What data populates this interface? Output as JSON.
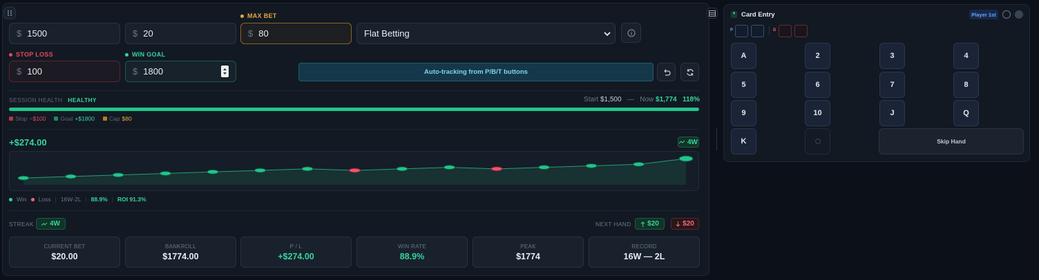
{
  "inputs": {
    "bankroll": {
      "prefix": "$",
      "value": "1500"
    },
    "base_bet": {
      "prefix": "$",
      "value": "20"
    },
    "max_bet": {
      "label": "MAX BET",
      "prefix": "$",
      "value": "80"
    },
    "strategy": {
      "value": "Flat Betting"
    },
    "stop_loss": {
      "label": "STOP LOSS",
      "prefix": "$",
      "value": "100"
    },
    "win_goal": {
      "label": "WIN GOAL",
      "prefix": "$",
      "value": "1800"
    }
  },
  "auto_tracking_button": "Auto-tracking from P/B/T buttons",
  "session_health": {
    "label": "SESSION HEALTH",
    "status": "HEALTHY",
    "start_label": "Start",
    "start": "$1,500",
    "separator": "—",
    "now_label": "Now",
    "now": "$1,774",
    "percent": "118%"
  },
  "limits_legend": [
    {
      "label": "Stop",
      "value": "−$100"
    },
    {
      "label": "Goal",
      "value": "+$1800"
    },
    {
      "label": "Cap",
      "value": "$80"
    }
  ],
  "pl_display": "+$274.00",
  "trend_badge": "4W",
  "chart_data": {
    "type": "line",
    "values": [
      1520,
      1540,
      1560,
      1580,
      1600,
      1620,
      1640,
      1620,
      1640,
      1660,
      1640,
      1660,
      1680,
      1700,
      1774
    ],
    "ylim": [
      1340,
      1865
    ]
  },
  "chart_legend": {
    "win": "Win",
    "loss": "Loss",
    "record": "16W-2L",
    "win_rate": "88.9%",
    "roi": "ROI 91.3%"
  },
  "streak": {
    "label": "STREAK",
    "value": "4W"
  },
  "next_hand": {
    "label": "NEXT HAND",
    "up": "$20",
    "down": "$20"
  },
  "stats": [
    {
      "label": "CURRENT BET",
      "value": "$20.00"
    },
    {
      "label": "BANKROLL",
      "value": "$1774.00"
    },
    {
      "label": "P / L",
      "value": "+$274.00"
    },
    {
      "label": "WIN RATE",
      "value": "88.9%"
    },
    {
      "label": "PEAK",
      "value": "$1774"
    },
    {
      "label": "RECORD",
      "value": "16W — 2L"
    }
  ],
  "card_entry": {
    "title": "Card Entry",
    "badge": "Player 1st",
    "player_label": "P",
    "banker_label": "B",
    "cards": [
      "A",
      "2",
      "3",
      "4",
      "5",
      "6",
      "7",
      "8",
      "9",
      "10",
      "J",
      "Q",
      "K"
    ],
    "skip": "Skip Hand"
  }
}
